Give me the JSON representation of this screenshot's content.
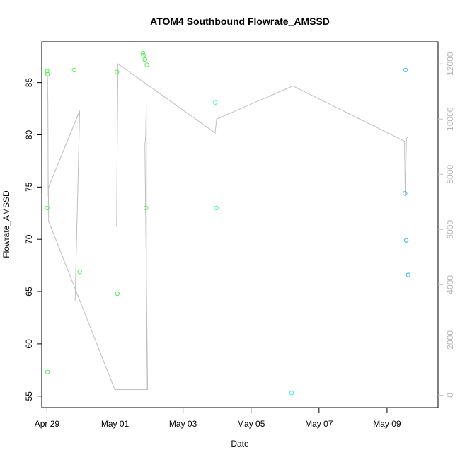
{
  "chart_data": {
    "type": "scatter",
    "title": "ATOM4 Southbound Flowrate_AMSSD",
    "xlabel": "Date",
    "ylabel": "Flowrate_AMSSD",
    "xlim": [
      "2024-04-28T20:18",
      "2024-05-10T12:00"
    ],
    "ylim": [
      53.9,
      88.9
    ],
    "y2lim": [
      -450,
      12800
    ],
    "x_ticks": [
      {
        "x": "2024-04-29T00:00",
        "label": "Apr 29"
      },
      {
        "x": "2024-05-01T00:00",
        "label": "May 01"
      },
      {
        "x": "2024-05-03T00:00",
        "label": "May 03"
      },
      {
        "x": "2024-05-05T00:00",
        "label": "May 05"
      },
      {
        "x": "2024-05-07T00:00",
        "label": "May 07"
      },
      {
        "x": "2024-05-09T00:00",
        "label": "May 09"
      }
    ],
    "y_ticks": [
      55,
      60,
      65,
      70,
      75,
      80,
      85
    ],
    "y2_ticks": [
      0,
      2000,
      4000,
      6000,
      8000,
      10000,
      12000
    ],
    "grid": false,
    "legend": "none",
    "series": [
      {
        "type": "scatter",
        "points": [
          {
            "x": "2024-04-29T00:05",
            "y": 86.1,
            "color": "#4cf249"
          },
          {
            "x": "2024-04-29T00:10",
            "y": 73.0,
            "color": "#4cf249"
          },
          {
            "x": "2024-04-29T00:15",
            "y": 57.3,
            "color": "#4cf249"
          },
          {
            "x": "2024-04-29T00:22",
            "y": 85.8,
            "color": "#4cf249"
          },
          {
            "x": "2024-04-29T19:10",
            "y": 86.2,
            "color": "#4cf249"
          },
          {
            "x": "2024-04-29T23:10",
            "y": 66.9,
            "color": "#4cf249"
          },
          {
            "x": "2024-05-01T01:20",
            "y": 86.0,
            "color": "#4cf249"
          },
          {
            "x": "2024-05-01T01:40",
            "y": 64.8,
            "color": "#4cf249"
          },
          {
            "x": "2024-05-01T19:40",
            "y": 87.8,
            "color": "#4cf249"
          },
          {
            "x": "2024-05-01T20:00",
            "y": 87.6,
            "color": "#4cf249"
          },
          {
            "x": "2024-05-01T21:05",
            "y": 87.2,
            "color": "#4cf249"
          },
          {
            "x": "2024-05-01T21:50",
            "y": 73.0,
            "color": "#4cf249"
          },
          {
            "x": "2024-05-01T22:30",
            "y": 86.7,
            "color": "#4cf249"
          },
          {
            "x": "2024-05-03T22:50",
            "y": 83.1,
            "color": "#3ef2b5"
          },
          {
            "x": "2024-05-03T23:30",
            "y": 73.0,
            "color": "#3ef2b5"
          },
          {
            "x": "2024-05-06T04:40",
            "y": 55.3,
            "color": "#3fefe9"
          },
          {
            "x": "2024-05-09T12:40",
            "y": 74.4,
            "color": "#3cb8f0"
          },
          {
            "x": "2024-05-09T13:05",
            "y": 86.2,
            "color": "#3cb8f0"
          },
          {
            "x": "2024-05-09T13:35",
            "y": 69.9,
            "color": "#3cb8f0"
          },
          {
            "x": "2024-05-09T14:55",
            "y": 66.6,
            "color": "#3cb8f0"
          }
        ]
      },
      {
        "type": "line",
        "axis": "right",
        "color": "#bebebe",
        "points": [
          {
            "x": "2024-04-29T00:20",
            "y": 11600
          },
          {
            "x": "2024-04-29T00:40",
            "y": 10500
          },
          {
            "x": "2024-04-29T00:50",
            "y": 7200
          },
          {
            "x": "2024-04-29T01:00",
            "y": 7500
          },
          {
            "x": "2024-04-29T01:10",
            "y": 6300
          },
          {
            "x": "2024-04-30T23:50",
            "y": 200
          },
          {
            "x": "2024-05-01T23:00",
            "y": 200
          },
          {
            "x": "2024-05-01T21:05",
            "y": 9100
          },
          {
            "x": "2024-05-01T21:35",
            "y": 9250
          },
          {
            "x": "2024-05-01T22:05",
            "y": 10500
          },
          {
            "x": "2024-05-01T22:10",
            "y": 200
          }
        ]
      },
      {
        "type": "line",
        "axis": "right",
        "color": "#bebebe",
        "points": [
          {
            "x": "2024-04-29T00:50",
            "y": 7500
          },
          {
            "x": "2024-04-29T23:05",
            "y": 10300
          },
          {
            "x": "2024-04-29T19:50",
            "y": 3400
          }
        ]
      },
      {
        "type": "line",
        "axis": "right",
        "color": "#bebebe",
        "points": [
          {
            "x": "2024-05-01T01:10",
            "y": 6100
          },
          {
            "x": "2024-05-01T01:20",
            "y": 7800
          },
          {
            "x": "2024-05-01T02:05",
            "y": 12000
          },
          {
            "x": "2024-05-03T22:40",
            "y": 9500
          },
          {
            "x": "2024-05-03T23:40",
            "y": 10000
          },
          {
            "x": "2024-05-06T05:30",
            "y": 11200
          },
          {
            "x": "2024-05-09T12:20",
            "y": 9200
          },
          {
            "x": "2024-05-09T12:50",
            "y": 7200
          },
          {
            "x": "2024-05-09T13:40",
            "y": 9300
          },
          {
            "x": "2024-05-09T14:40",
            "y": 9350
          }
        ]
      }
    ]
  }
}
